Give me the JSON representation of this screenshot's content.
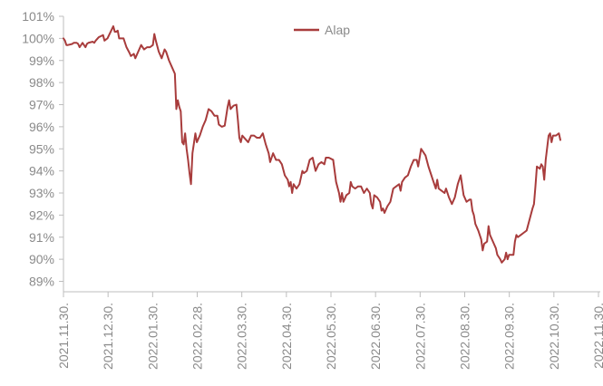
{
  "chart_data": {
    "type": "line",
    "title": "",
    "xlabel": "",
    "ylabel": "",
    "ylim": [
      89,
      101
    ],
    "y_ticks": [
      {
        "value": 101,
        "label": "101%"
      },
      {
        "value": 100,
        "label": "100%"
      },
      {
        "value": 99,
        "label": "99%"
      },
      {
        "value": 98,
        "label": "98%"
      },
      {
        "value": 97,
        "label": "97%"
      },
      {
        "value": 96,
        "label": "96%"
      },
      {
        "value": 95,
        "label": "95%"
      },
      {
        "value": 94,
        "label": "94%"
      },
      {
        "value": 93,
        "label": "93%"
      },
      {
        "value": 92,
        "label": "92%"
      },
      {
        "value": 91,
        "label": "91%"
      },
      {
        "value": 90,
        "label": "90%"
      },
      {
        "value": 89,
        "label": "89%"
      }
    ],
    "x_ticks": [
      "2021.11.30.",
      "2021.12.30.",
      "2022.01.30.",
      "2022.02.28.",
      "2022.03.30.",
      "2022.04.30.",
      "2022.05.30.",
      "2022.06.30.",
      "2022.07.30.",
      "2022.08.30.",
      "2022.09.30.",
      "2022.10.30.",
      "2022.11.30."
    ],
    "x_range": [
      "2021-11-30",
      "2022-11-30"
    ],
    "grid": false,
    "legend_position": "top-center",
    "series": [
      {
        "name": "Alap",
        "color": "#a83c3c",
        "points": [
          [
            "2021-11-30",
            100.0
          ],
          [
            "2021-12-01",
            99.9
          ],
          [
            "2021-12-02",
            99.7
          ],
          [
            "2021-12-03",
            99.7
          ],
          [
            "2021-12-06",
            99.75
          ],
          [
            "2021-12-07",
            99.8
          ],
          [
            "2021-12-08",
            99.8
          ],
          [
            "2021-12-09",
            99.8
          ],
          [
            "2021-12-10",
            99.75
          ],
          [
            "2021-12-11",
            99.6
          ],
          [
            "2021-12-13",
            99.8
          ],
          [
            "2021-12-14",
            99.7
          ],
          [
            "2021-12-15",
            99.6
          ],
          [
            "2021-12-16",
            99.75
          ],
          [
            "2021-12-17",
            99.8
          ],
          [
            "2021-12-20",
            99.85
          ],
          [
            "2021-12-21",
            99.8
          ],
          [
            "2021-12-22",
            99.9
          ],
          [
            "2021-12-24",
            100.05
          ],
          [
            "2021-12-27",
            100.15
          ],
          [
            "2021-12-28",
            99.9
          ],
          [
            "2021-12-29",
            99.95
          ],
          [
            "2021-12-30",
            100.0
          ],
          [
            "2022-01-03",
            100.55
          ],
          [
            "2022-01-04",
            100.3
          ],
          [
            "2022-01-05",
            100.3
          ],
          [
            "2022-01-06",
            100.35
          ],
          [
            "2022-01-07",
            100.0
          ],
          [
            "2022-01-10",
            100.0
          ],
          [
            "2022-01-12",
            99.6
          ],
          [
            "2022-01-14",
            99.35
          ],
          [
            "2022-01-15",
            99.2
          ],
          [
            "2022-01-17",
            99.3
          ],
          [
            "2022-01-18",
            99.1
          ],
          [
            "2022-01-20",
            99.4
          ],
          [
            "2022-01-22",
            99.7
          ],
          [
            "2022-01-24",
            99.5
          ],
          [
            "2022-01-26",
            99.6
          ],
          [
            "2022-01-28",
            99.6
          ],
          [
            "2022-01-30",
            99.7
          ],
          [
            "2022-01-31",
            100.2
          ],
          [
            "2022-02-01",
            99.9
          ],
          [
            "2022-02-03",
            99.4
          ],
          [
            "2022-02-05",
            99.1
          ],
          [
            "2022-02-07",
            99.5
          ],
          [
            "2022-02-08",
            99.4
          ],
          [
            "2022-02-10",
            99.0
          ],
          [
            "2022-02-12",
            98.7
          ],
          [
            "2022-02-14",
            98.4
          ],
          [
            "2022-02-15",
            96.8
          ],
          [
            "2022-02-16",
            97.2
          ],
          [
            "2022-02-17",
            96.9
          ],
          [
            "2022-02-18",
            96.7
          ],
          [
            "2022-02-19",
            95.3
          ],
          [
            "2022-02-20",
            95.2
          ],
          [
            "2022-02-21",
            95.7
          ],
          [
            "2022-02-22",
            95.0
          ],
          [
            "2022-02-23",
            94.5
          ],
          [
            "2022-02-24",
            93.9
          ],
          [
            "2022-02-25",
            93.4
          ],
          [
            "2022-02-26",
            94.8
          ],
          [
            "2022-02-28",
            95.7
          ],
          [
            "2022-03-01",
            95.3
          ],
          [
            "2022-03-03",
            95.6
          ],
          [
            "2022-03-05",
            96.0
          ],
          [
            "2022-03-07",
            96.3
          ],
          [
            "2022-03-09",
            96.8
          ],
          [
            "2022-03-11",
            96.7
          ],
          [
            "2022-03-13",
            96.5
          ],
          [
            "2022-03-15",
            96.5
          ],
          [
            "2022-03-16",
            96.1
          ],
          [
            "2022-03-18",
            96.0
          ],
          [
            "2022-03-20",
            96.05
          ],
          [
            "2022-03-22",
            96.9
          ],
          [
            "2022-03-23",
            97.2
          ],
          [
            "2022-03-24",
            96.8
          ],
          [
            "2022-03-26",
            96.95
          ],
          [
            "2022-03-28",
            97.0
          ],
          [
            "2022-03-29",
            96.3
          ],
          [
            "2022-03-30",
            95.5
          ],
          [
            "2022-03-31",
            95.3
          ],
          [
            "2022-04-01",
            95.6
          ],
          [
            "2022-04-03",
            95.45
          ],
          [
            "2022-04-05",
            95.3
          ],
          [
            "2022-04-07",
            95.6
          ],
          [
            "2022-04-09",
            95.6
          ],
          [
            "2022-04-11",
            95.5
          ],
          [
            "2022-04-13",
            95.5
          ],
          [
            "2022-04-15",
            95.7
          ],
          [
            "2022-04-17",
            95.2
          ],
          [
            "2022-04-19",
            94.8
          ],
          [
            "2022-04-20",
            94.4
          ],
          [
            "2022-04-22",
            94.8
          ],
          [
            "2022-04-24",
            94.5
          ],
          [
            "2022-04-26",
            94.5
          ],
          [
            "2022-04-28",
            94.3
          ],
          [
            "2022-04-30",
            93.8
          ],
          [
            "2022-05-02",
            93.6
          ],
          [
            "2022-05-03",
            93.3
          ],
          [
            "2022-05-04",
            93.5
          ],
          [
            "2022-05-05",
            93.0
          ],
          [
            "2022-05-06",
            93.4
          ],
          [
            "2022-05-08",
            93.2
          ],
          [
            "2022-05-10",
            93.4
          ],
          [
            "2022-05-12",
            94.0
          ],
          [
            "2022-05-13",
            93.9
          ],
          [
            "2022-05-15",
            94.0
          ],
          [
            "2022-05-17",
            94.5
          ],
          [
            "2022-05-19",
            94.6
          ],
          [
            "2022-05-21",
            94.0
          ],
          [
            "2022-05-23",
            94.3
          ],
          [
            "2022-05-25",
            94.4
          ],
          [
            "2022-05-27",
            94.3
          ],
          [
            "2022-05-28",
            94.6
          ],
          [
            "2022-05-30",
            94.6
          ],
          [
            "2022-06-02",
            94.5
          ],
          [
            "2022-06-04",
            93.5
          ],
          [
            "2022-06-06",
            93.0
          ],
          [
            "2022-06-07",
            92.6
          ],
          [
            "2022-06-08",
            93.0
          ],
          [
            "2022-06-09",
            92.6
          ],
          [
            "2022-06-11",
            92.9
          ],
          [
            "2022-06-13",
            93.0
          ],
          [
            "2022-06-14",
            93.5
          ],
          [
            "2022-06-15",
            93.3
          ],
          [
            "2022-06-17",
            93.2
          ],
          [
            "2022-06-19",
            93.3
          ],
          [
            "2022-06-21",
            93.3
          ],
          [
            "2022-06-23",
            93.0
          ],
          [
            "2022-06-25",
            93.2
          ],
          [
            "2022-06-27",
            93.0
          ],
          [
            "2022-06-28",
            92.5
          ],
          [
            "2022-06-29",
            92.3
          ],
          [
            "2022-06-30",
            92.9
          ],
          [
            "2022-07-02",
            92.8
          ],
          [
            "2022-07-04",
            92.6
          ],
          [
            "2022-07-05",
            92.2
          ],
          [
            "2022-07-06",
            92.3
          ],
          [
            "2022-07-07",
            92.1
          ],
          [
            "2022-07-09",
            92.4
          ],
          [
            "2022-07-11",
            92.6
          ],
          [
            "2022-07-13",
            93.2
          ],
          [
            "2022-07-15",
            93.3
          ],
          [
            "2022-07-17",
            93.4
          ],
          [
            "2022-07-18",
            93.1
          ],
          [
            "2022-07-19",
            93.5
          ],
          [
            "2022-07-21",
            93.7
          ],
          [
            "2022-07-23",
            93.8
          ],
          [
            "2022-07-25",
            94.2
          ],
          [
            "2022-07-27",
            94.5
          ],
          [
            "2022-07-29",
            94.5
          ],
          [
            "2022-07-30",
            94.2
          ],
          [
            "2022-08-01",
            95.0
          ],
          [
            "2022-08-02",
            94.9
          ],
          [
            "2022-08-04",
            94.7
          ],
          [
            "2022-08-06",
            94.2
          ],
          [
            "2022-08-08",
            93.8
          ],
          [
            "2022-08-09",
            93.6
          ],
          [
            "2022-08-11",
            93.2
          ],
          [
            "2022-08-12",
            93.6
          ],
          [
            "2022-08-13",
            93.2
          ],
          [
            "2022-08-15",
            93.1
          ],
          [
            "2022-08-17",
            93.0
          ],
          [
            "2022-08-18",
            93.2
          ],
          [
            "2022-08-20",
            92.8
          ],
          [
            "2022-08-22",
            92.5
          ],
          [
            "2022-08-24",
            92.8
          ],
          [
            "2022-08-26",
            93.4
          ],
          [
            "2022-08-28",
            93.8
          ],
          [
            "2022-08-30",
            92.9
          ],
          [
            "2022-09-01",
            92.6
          ],
          [
            "2022-09-03",
            92.7
          ],
          [
            "2022-09-04",
            92.7
          ],
          [
            "2022-09-05",
            92.2
          ],
          [
            "2022-09-06",
            92.0
          ],
          [
            "2022-09-07",
            91.6
          ],
          [
            "2022-09-09",
            91.3
          ],
          [
            "2022-09-11",
            90.9
          ],
          [
            "2022-09-12",
            90.4
          ],
          [
            "2022-09-13",
            90.7
          ],
          [
            "2022-09-15",
            90.8
          ],
          [
            "2022-09-16",
            91.5
          ],
          [
            "2022-09-17",
            91.1
          ],
          [
            "2022-09-19",
            90.8
          ],
          [
            "2022-09-21",
            90.5
          ],
          [
            "2022-09-22",
            90.2
          ],
          [
            "2022-09-24",
            90.0
          ],
          [
            "2022-09-25",
            89.85
          ],
          [
            "2022-09-27",
            90.0
          ],
          [
            "2022-09-28",
            90.3
          ],
          [
            "2022-09-29",
            90.0
          ],
          [
            "2022-09-30",
            90.2
          ],
          [
            "2022-10-02",
            90.2
          ],
          [
            "2022-10-03",
            90.2
          ],
          [
            "2022-10-04",
            90.8
          ],
          [
            "2022-10-05",
            91.1
          ],
          [
            "2022-10-06",
            91.0
          ],
          [
            "2022-10-08",
            91.1
          ],
          [
            "2022-10-10",
            91.2
          ],
          [
            "2022-10-12",
            91.3
          ],
          [
            "2022-10-14",
            91.8
          ],
          [
            "2022-10-16",
            92.3
          ],
          [
            "2022-10-17",
            92.5
          ],
          [
            "2022-10-18",
            93.3
          ],
          [
            "2022-10-19",
            94.2
          ],
          [
            "2022-10-21",
            94.1
          ],
          [
            "2022-10-22",
            94.3
          ],
          [
            "2022-10-23",
            94.2
          ],
          [
            "2022-10-24",
            93.6
          ],
          [
            "2022-10-25",
            94.5
          ],
          [
            "2022-10-27",
            95.6
          ],
          [
            "2022-10-28",
            95.7
          ],
          [
            "2022-10-29",
            95.3
          ],
          [
            "2022-10-30",
            95.6
          ],
          [
            "2022-11-01",
            95.6
          ],
          [
            "2022-11-03",
            95.7
          ],
          [
            "2022-11-04",
            95.4
          ]
        ]
      }
    ]
  }
}
